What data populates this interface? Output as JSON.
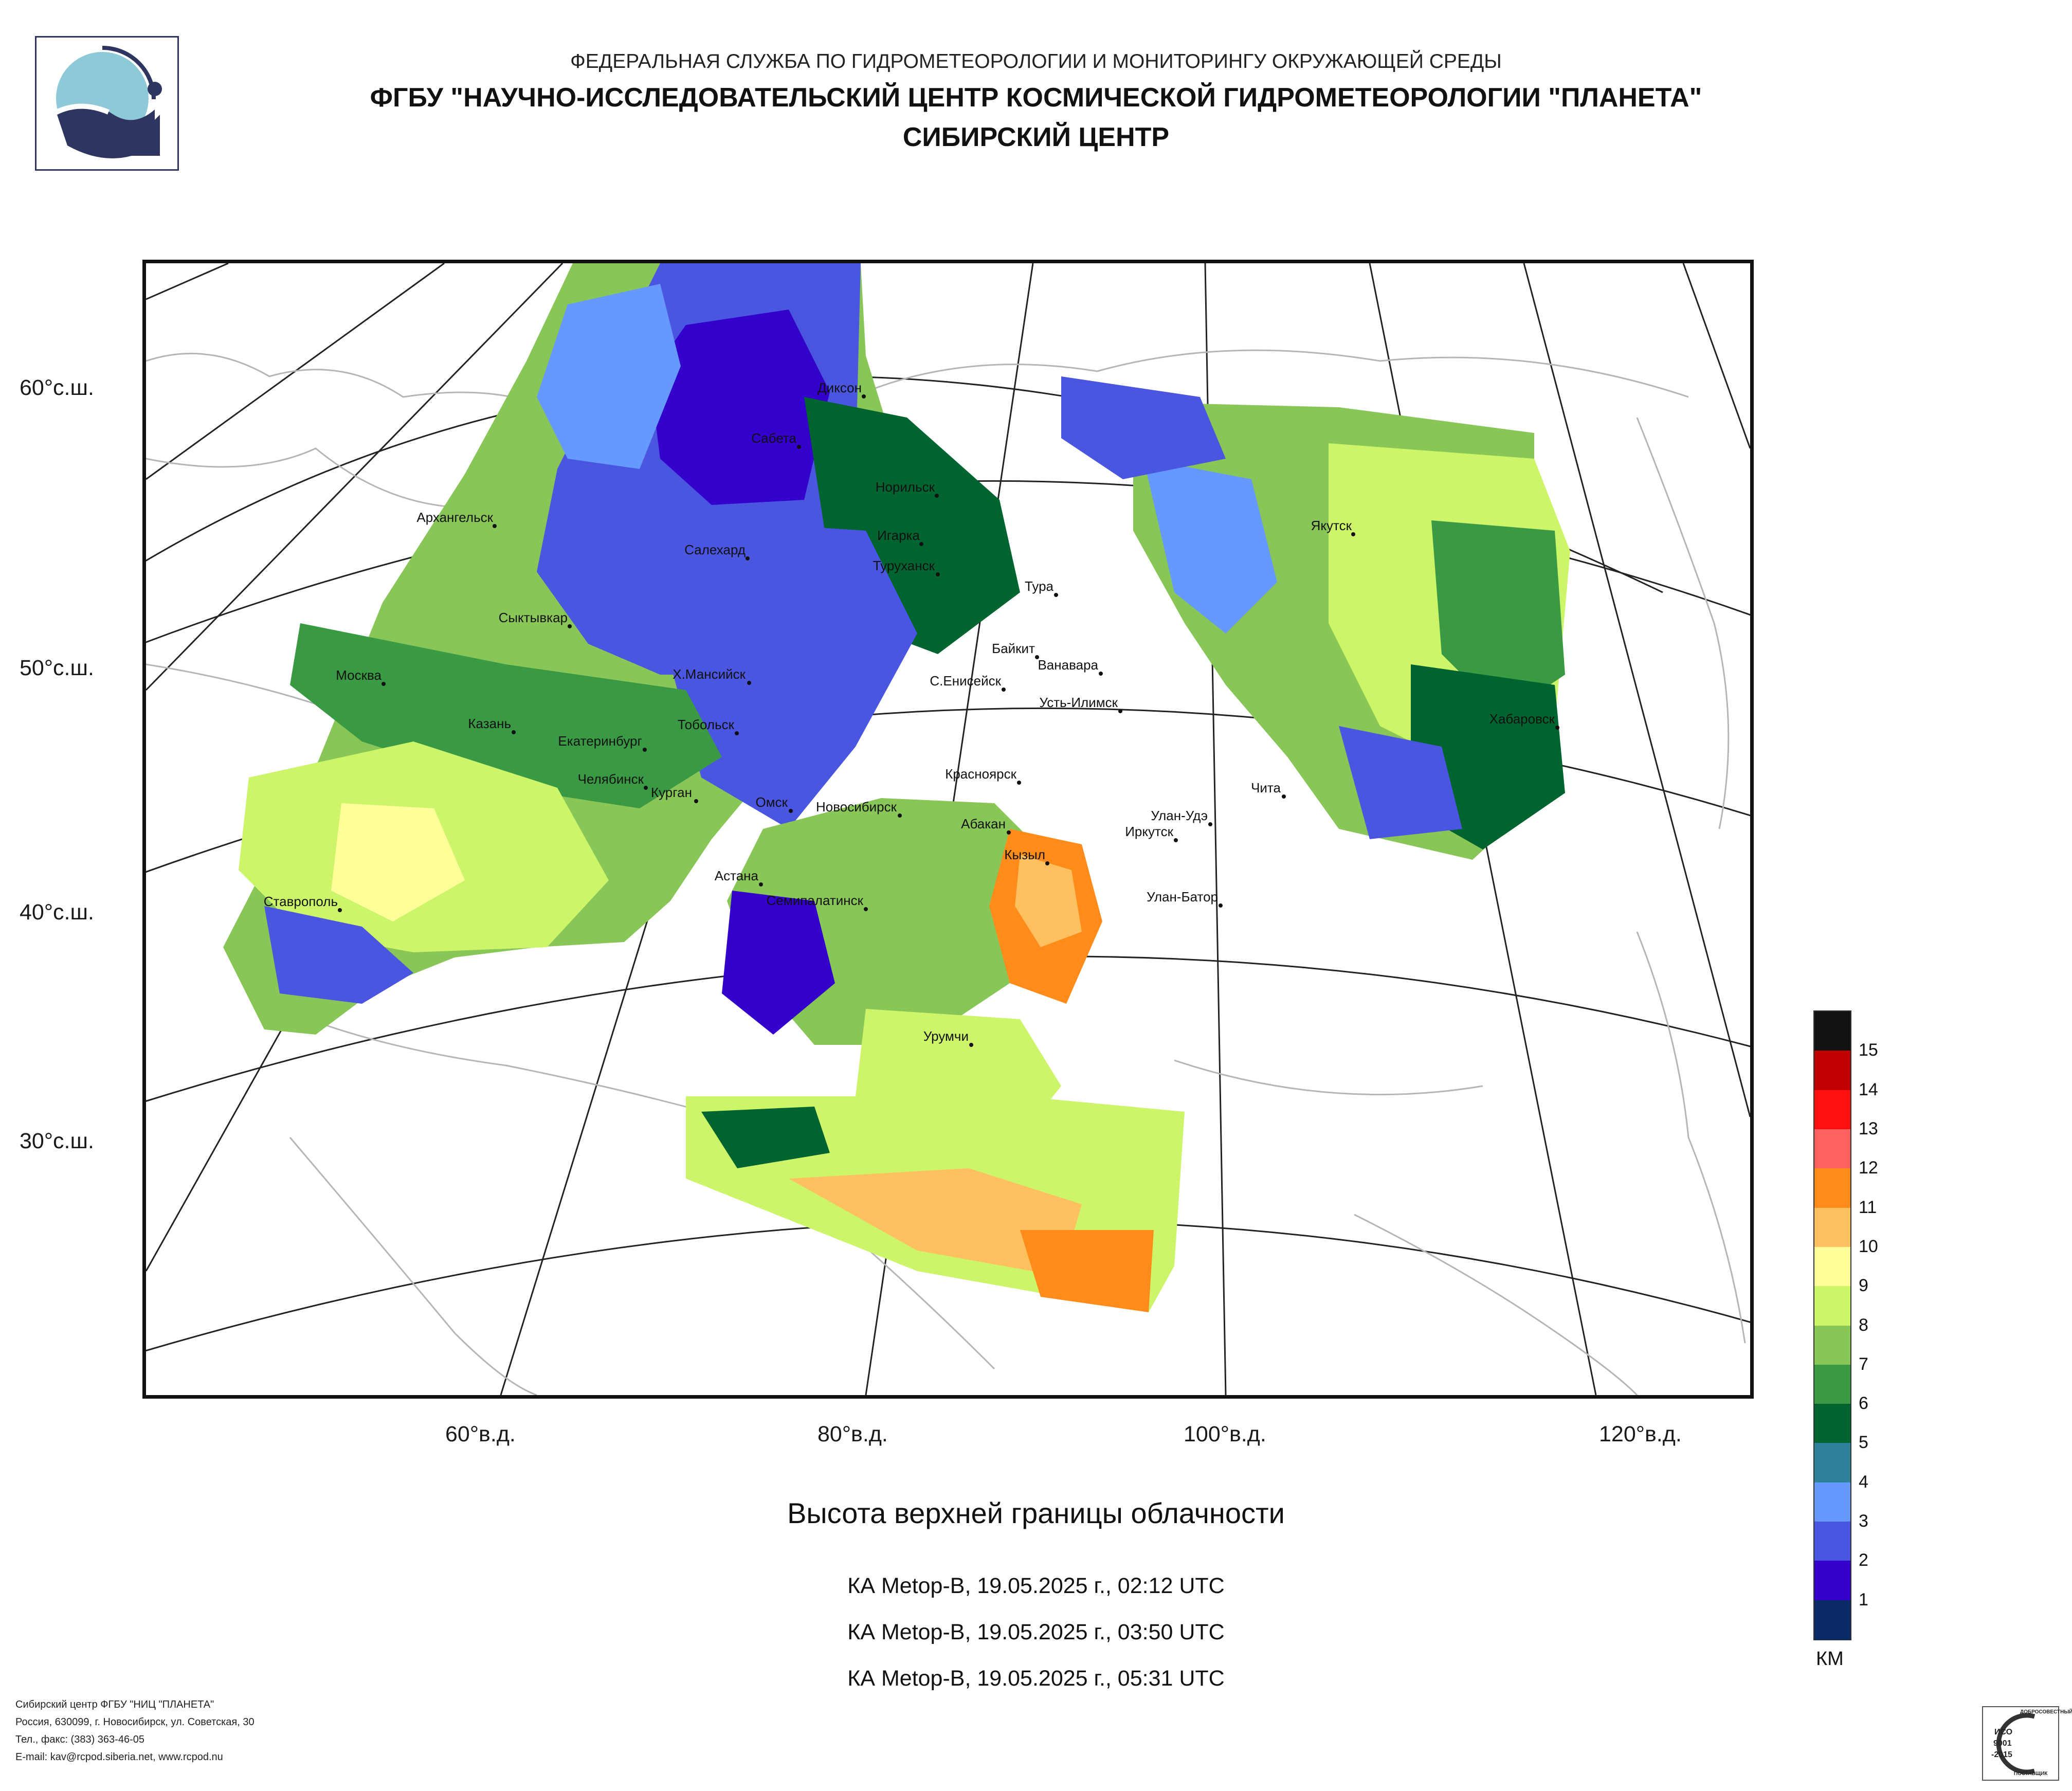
{
  "header": {
    "org": "ФЕДЕРАЛЬНАЯ СЛУЖБА ПО ГИДРОМЕТЕОРОЛОГИИ И МОНИТОРИНГУ ОКРУЖАЮЩЕЙ СРЕДЫ",
    "institute": "ФГБУ \"НАУЧНО-ИССЛЕДОВАТЕЛЬСКИЙ ЦЕНТР КОСМИЧЕСКОЙ ГИДРОМЕТЕОРОЛОГИИ \"ПЛАНЕТА\"",
    "branch": "СИБИРСКИЙ ЦЕНТР"
  },
  "map": {
    "lat_labels": [
      "60°с.ш.",
      "50°с.ш.",
      "40°с.ш.",
      "30°с.ш."
    ],
    "lon_labels": [
      "60°в.д.",
      "80°в.д.",
      "100°в.д.",
      "120°в.д."
    ],
    "cities": [
      "Архангельск",
      "Диксон",
      "Сабета",
      "Норильск",
      "Игарка",
      "Салехард",
      "Туруханск",
      "Тура",
      "Якутск",
      "Сыктывкар",
      "Байкит",
      "Ванавара",
      "Москва",
      "Х.Мансийск",
      "С.Енисейск",
      "Усть-Илимск",
      "Хабаровск",
      "Казань",
      "Екатеринбург",
      "Тобольск",
      "Красноярск",
      "Челябинск",
      "Курган",
      "Омск",
      "Чита",
      "Новосибирск",
      "Абакан",
      "Улан-Удэ",
      "Иркутск",
      "Кызыл",
      "Астана",
      "Ставрополь",
      "Семипалатинск",
      "Улан-Батор",
      "Урумчи"
    ]
  },
  "chart_title": "Высота верхней границы облачности",
  "passes": [
    "КА Metop-B, 19.05.2025 г., 02:12 UTC",
    "КА Metop-B, 19.05.2025 г., 03:50 UTC",
    "КА Metop-B, 19.05.2025 г., 05:31 UTC"
  ],
  "legend": {
    "unit": "КМ",
    "levels": [
      "15",
      "14",
      "13",
      "12",
      "11",
      "10",
      "9",
      "8",
      "7",
      "6",
      "5",
      "4",
      "3",
      "2",
      "1"
    ],
    "colors": [
      "#111111",
      "#c00000",
      "#ff1010",
      "#ff6060",
      "#ff8c1a",
      "#ffc060",
      "#ffff99",
      "#ccf56a",
      "#88c657",
      "#3a9a44",
      "#006430",
      "#2f8099",
      "#6699ff",
      "#4a55e0",
      "#3300cc",
      "#0a2a66"
    ]
  },
  "footer": {
    "lines": [
      "Сибирский центр ФГБУ \"НИЦ \"ПЛАНЕТА\"",
      "Россия, 630099, г. Новосибирск, ул. Советская, 30",
      "Тел., факс: (383) 363-46-05",
      "E-mail: kav@rcpod.siberia.net, www.rcpod.nu"
    ]
  },
  "iso": {
    "top": "ДОБРОСОВЕСТНЫЙ",
    "code": "ИСО",
    "number": "9001",
    "year": "-2015",
    "bottom": "ПОСТАВЩИК"
  }
}
